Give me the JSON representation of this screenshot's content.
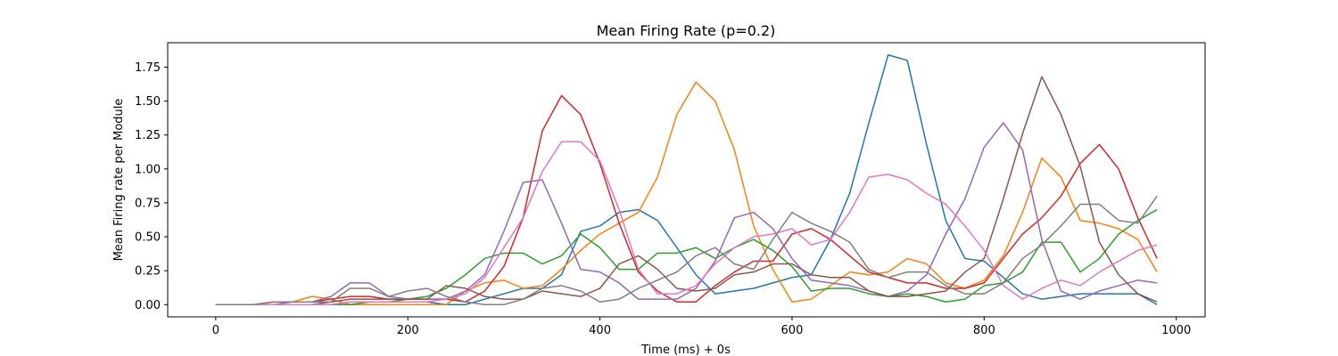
{
  "chart_data": {
    "type": "line",
    "title": "Mean Firing Rate (p=0.2)",
    "xlabel": "Time (ms) + 0s",
    "ylabel": "Mean Firing rate per Module",
    "xlim": [
      -50,
      1030
    ],
    "ylim": [
      -0.09,
      1.93
    ],
    "xticks": [
      0,
      200,
      400,
      600,
      800,
      1000
    ],
    "yticks": [
      0.0,
      0.25,
      0.5,
      0.75,
      1.0,
      1.25,
      1.5,
      1.75
    ],
    "xtick_labels": [
      "0",
      "200",
      "400",
      "600",
      "800",
      "1000"
    ],
    "ytick_labels": [
      "0.00",
      "0.25",
      "0.50",
      "0.75",
      "1.00",
      "1.25",
      "1.50",
      "1.75"
    ],
    "grid": false,
    "x": [
      0,
      20,
      40,
      60,
      80,
      100,
      120,
      140,
      160,
      180,
      200,
      220,
      240,
      260,
      280,
      300,
      320,
      340,
      360,
      380,
      400,
      420,
      440,
      460,
      480,
      500,
      520,
      540,
      560,
      580,
      600,
      620,
      640,
      660,
      680,
      700,
      720,
      740,
      760,
      780,
      800,
      820,
      840,
      860,
      880,
      900,
      920,
      940,
      960,
      980
    ],
    "series": [
      {
        "color": "#1f77b4",
        "values": [
          0,
          0,
          0,
          0,
          0,
          0,
          0,
          0.02,
          0.02,
          0.02,
          0.02,
          0.02,
          0,
          0,
          0.04,
          0.08,
          0.12,
          0.12,
          0.22,
          0.54,
          0.58,
          0.68,
          0.7,
          0.62,
          0.42,
          0.22,
          0.08,
          0.1,
          0.12,
          0.16,
          0.2,
          0.22,
          0.48,
          0.82,
          1.34,
          1.84,
          1.8,
          1.18,
          0.62,
          0.34,
          0.32,
          0.2,
          0.08,
          0.04,
          0.06,
          0.08,
          0.08,
          0.08,
          0.08,
          0
        ]
      },
      {
        "color": "#ff7f0e",
        "values": [
          0,
          0,
          0,
          0.02,
          0.02,
          0.06,
          0.04,
          0,
          0,
          0,
          0,
          0,
          0,
          0.1,
          0.16,
          0.18,
          0.12,
          0.14,
          0.26,
          0.4,
          0.52,
          0.6,
          0.68,
          0.94,
          1.4,
          1.64,
          1.5,
          1.14,
          0.58,
          0.26,
          0.02,
          0.04,
          0.14,
          0.24,
          0.22,
          0.24,
          0.34,
          0.3,
          0.16,
          0.12,
          0.18,
          0.36,
          0.68,
          1.08,
          0.94,
          0.62,
          0.6,
          0.56,
          0.48,
          0.24
        ]
      },
      {
        "color": "#2ca02c",
        "values": [
          0,
          0,
          0,
          0,
          0,
          0,
          0,
          0,
          0.02,
          0.02,
          0.04,
          0.06,
          0.12,
          0.22,
          0.34,
          0.38,
          0.38,
          0.3,
          0.36,
          0.52,
          0.42,
          0.26,
          0.26,
          0.38,
          0.38,
          0.42,
          0.34,
          0.42,
          0.48,
          0.4,
          0.28,
          0.1,
          0.12,
          0.12,
          0.08,
          0.06,
          0.08,
          0.06,
          0.02,
          0.04,
          0.14,
          0.16,
          0.24,
          0.46,
          0.46,
          0.24,
          0.34,
          0.52,
          0.62,
          0.7
        ]
      },
      {
        "color": "#d62728",
        "values": [
          0,
          0,
          0,
          0.02,
          0.02,
          0.02,
          0.04,
          0.06,
          0.06,
          0.04,
          0.04,
          0.04,
          0.04,
          0.02,
          0.1,
          0.28,
          0.64,
          1.28,
          1.54,
          1.4,
          1.04,
          0.6,
          0.24,
          0.1,
          0.02,
          0.02,
          0.14,
          0.24,
          0.32,
          0.32,
          0.52,
          0.56,
          0.48,
          0.36,
          0.24,
          0.2,
          0.16,
          0.16,
          0.12,
          0.12,
          0.16,
          0.34,
          0.52,
          0.64,
          0.8,
          1.04,
          1.18,
          1.0,
          0.64,
          0.34
        ]
      },
      {
        "color": "#9467bd",
        "values": [
          0,
          0,
          0,
          0,
          0.02,
          0.02,
          0.06,
          0.16,
          0.16,
          0.06,
          0.04,
          0.04,
          0.04,
          0.1,
          0.22,
          0.54,
          0.9,
          0.92,
          0.6,
          0.26,
          0.24,
          0.16,
          0.04,
          0.04,
          0.04,
          0.12,
          0.32,
          0.64,
          0.68,
          0.56,
          0.34,
          0.18,
          0.16,
          0.14,
          0.1,
          0.06,
          0.1,
          0.22,
          0.52,
          0.78,
          1.16,
          1.34,
          1.14,
          0.48,
          0.1,
          0.04,
          0.1,
          0.14,
          0.18,
          0.16
        ]
      },
      {
        "color": "#8c564b",
        "values": [
          0,
          0,
          0,
          0,
          0,
          0,
          0.02,
          0.04,
          0.04,
          0.04,
          0.04,
          0.04,
          0.14,
          0.12,
          0.06,
          0.04,
          0.04,
          0.1,
          0.08,
          0.06,
          0.12,
          0.3,
          0.36,
          0.26,
          0.12,
          0.1,
          0.12,
          0.22,
          0.24,
          0.3,
          0.3,
          0.22,
          0.2,
          0.2,
          0.1,
          0.06,
          0.06,
          0.08,
          0.1,
          0.24,
          0.34,
          0.78,
          1.26,
          1.68,
          1.4,
          1.02,
          0.46,
          0.22,
          0.08,
          0.02
        ]
      },
      {
        "color": "#e377c2",
        "values": [
          0,
          0,
          0,
          0,
          0,
          0,
          0,
          0.02,
          0.02,
          0.02,
          0.02,
          0.02,
          0.04,
          0.08,
          0.2,
          0.42,
          0.64,
          0.98,
          1.2,
          1.2,
          1.06,
          0.7,
          0.26,
          0.08,
          0.08,
          0.14,
          0.3,
          0.42,
          0.5,
          0.52,
          0.56,
          0.44,
          0.48,
          0.68,
          0.94,
          0.96,
          0.92,
          0.82,
          0.74,
          0.58,
          0.4,
          0.14,
          0.04,
          0.12,
          0.18,
          0.14,
          0.24,
          0.32,
          0.4,
          0.44
        ]
      },
      {
        "color": "#7f7f7f",
        "values": [
          0,
          0,
          0,
          0.02,
          0.02,
          0.02,
          0.02,
          0.12,
          0.12,
          0.06,
          0.1,
          0.12,
          0.06,
          0.02,
          0,
          0,
          0.04,
          0.12,
          0.14,
          0.1,
          0.02,
          0.04,
          0.12,
          0.18,
          0.24,
          0.36,
          0.42,
          0.3,
          0.26,
          0.48,
          0.68,
          0.6,
          0.54,
          0.46,
          0.26,
          0.2,
          0.24,
          0.24,
          0.14,
          0.08,
          0.08,
          0.16,
          0.34,
          0.44,
          0.58,
          0.74,
          0.74,
          0.62,
          0.6,
          0.8
        ]
      }
    ]
  }
}
